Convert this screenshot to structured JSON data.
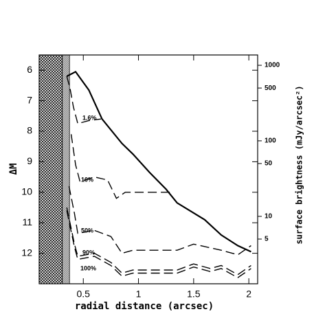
{
  "chart_data": {
    "type": "line",
    "x_label": "radial distance (arcsec)",
    "y_label": "ΔM",
    "y2_label": "surface brightness (mJy/arcsec²)",
    "xlim": [
      0.1,
      2.08
    ],
    "xticks": [
      0.5,
      1,
      1.5,
      2
    ],
    "ylim": [
      5.5,
      13
    ],
    "y_inverted": true,
    "yticks": [
      6,
      7,
      8,
      9,
      10,
      11,
      12
    ],
    "y2lim": [
      1.28,
      1370
    ],
    "y2_log": true,
    "y2ticks": [
      5,
      10,
      50,
      100,
      500,
      1000
    ],
    "shaded_regions": [
      {
        "x0": 0.1,
        "x1": 0.31,
        "pattern": "dense"
      },
      {
        "x0": 0.31,
        "x1": 0.375,
        "pattern": "light"
      }
    ],
    "series": [
      {
        "color": "#000000",
        "dashed": false,
        "x": [
          0.35,
          0.43,
          0.55,
          0.67,
          0.85,
          0.95,
          1.1,
          1.25,
          1.35,
          1.6,
          1.75,
          1.9,
          2.02
        ],
        "values": [
          6.2,
          6.05,
          6.65,
          7.6,
          8.4,
          8.75,
          9.35,
          9.9,
          10.35,
          10.9,
          11.4,
          11.75,
          11.95
        ]
      },
      {
        "name": "1.6%",
        "color": "#000000",
        "dashed": true,
        "x": [
          0.35,
          0.38,
          0.41,
          0.45,
          0.55,
          0.66
        ],
        "values": [
          6.2,
          6.6,
          7.2,
          7.75,
          7.65,
          7.6
        ]
      },
      {
        "name": "10%",
        "color": "#000000",
        "dashed": true,
        "x": [
          0.39,
          0.43,
          0.47,
          0.6,
          0.72,
          0.8,
          0.88,
          1.3
        ],
        "values": [
          8.1,
          9.1,
          9.65,
          9.5,
          9.6,
          10.2,
          10.0,
          10.0
        ]
      },
      {
        "name": "50%",
        "color": "#000000",
        "dashed": true,
        "x": [
          0.37,
          0.42,
          0.45,
          0.6,
          0.75,
          0.85,
          0.95,
          1.35,
          1.5,
          1.75,
          1.9,
          2.02
        ],
        "values": [
          9.8,
          10.7,
          11.35,
          11.25,
          11.45,
          12.0,
          11.9,
          11.9,
          11.7,
          11.9,
          12.05,
          11.75
        ]
      },
      {
        "name": "90%",
        "color": "#000000",
        "dashed": true,
        "x": [
          0.35,
          0.42,
          0.45,
          0.6,
          0.75,
          0.85,
          0.95,
          1.35,
          1.5,
          1.65,
          1.75,
          1.9,
          2.02
        ],
        "values": [
          10.5,
          11.7,
          12.1,
          12.0,
          12.3,
          12.65,
          12.55,
          12.55,
          12.35,
          12.5,
          12.4,
          12.7,
          12.4
        ]
      },
      {
        "name": "100%",
        "color": "#000000",
        "dashed": true,
        "x": [
          0.35,
          0.42,
          0.45,
          0.6,
          0.75,
          0.85,
          0.95,
          1.35,
          1.5,
          1.65,
          1.75,
          1.9,
          2.02
        ],
        "values": [
          10.6,
          11.8,
          12.2,
          12.1,
          12.4,
          12.75,
          12.65,
          12.65,
          12.45,
          12.6,
          12.5,
          12.8,
          12.5
        ]
      }
    ]
  }
}
